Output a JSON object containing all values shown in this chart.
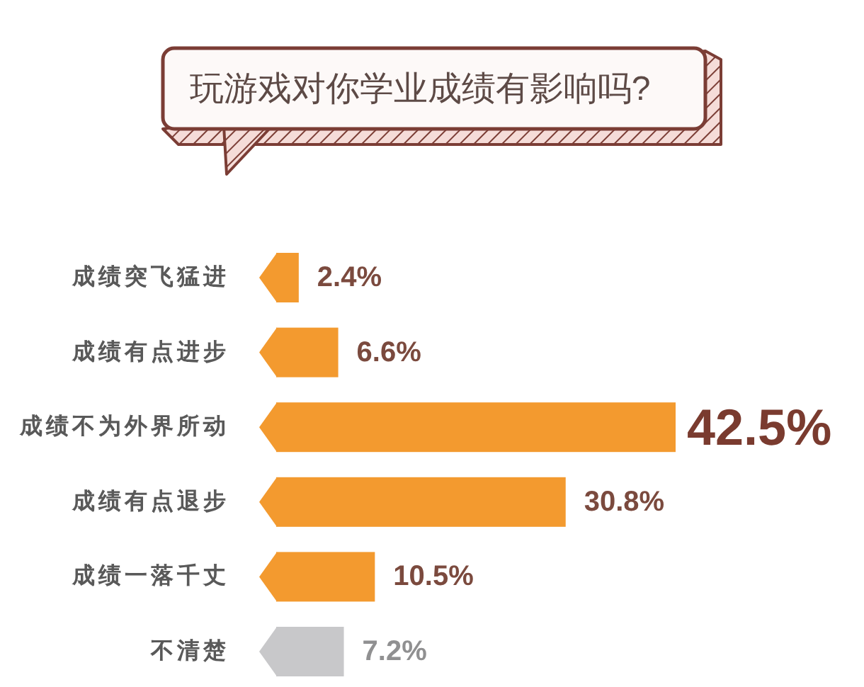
{
  "chart_data": {
    "type": "bar",
    "orientation": "horizontal",
    "title": "玩游戏对你学业成绩有影响吗?",
    "categories": [
      "成绩突飞猛进",
      "成绩有点进步",
      "成绩不为外界所动",
      "成绩有点退步",
      "成绩一落千丈",
      "不清楚"
    ],
    "values": [
      2.4,
      6.6,
      42.5,
      30.8,
      10.5,
      7.2
    ],
    "colors": [
      "#f39a2f",
      "#f39a2f",
      "#f39a2f",
      "#f39a2f",
      "#f39a2f",
      "#c8c8ca"
    ],
    "value_labels": [
      "2.4%",
      "6.6%",
      "42.5%",
      "30.8%",
      "10.5%",
      "7.2%"
    ],
    "tick_labels": "y"
  }
}
